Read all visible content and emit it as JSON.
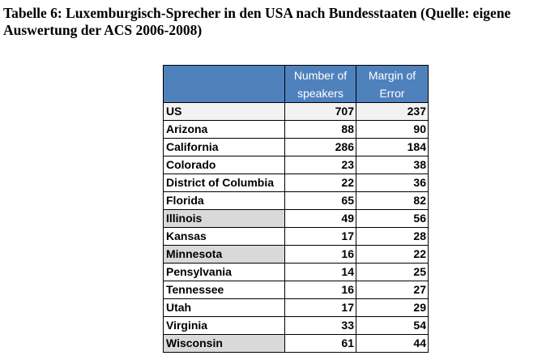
{
  "caption": {
    "line1": "Tabelle 6: Luxemburgisch-Sprecher in den USA nach Bundesstaaten (Quelle: eigene",
    "line2": "Auswertung der ACS 2006-2008)"
  },
  "table": {
    "headers": {
      "col1": "",
      "col2": "Number of speakers",
      "col3": "Margin of Error"
    },
    "rows": [
      {
        "state": "US",
        "speakers": "707",
        "margin": "237",
        "shaded": false
      },
      {
        "state": "Arizona",
        "speakers": "88",
        "margin": "90",
        "shaded": false
      },
      {
        "state": "California",
        "speakers": "286",
        "margin": "184",
        "shaded": false
      },
      {
        "state": "Colorado",
        "speakers": "23",
        "margin": "38",
        "shaded": false
      },
      {
        "state": "District of Columbia",
        "speakers": "22",
        "margin": "36",
        "shaded": false
      },
      {
        "state": "Florida",
        "speakers": "65",
        "margin": "82",
        "shaded": false
      },
      {
        "state": "Illinois",
        "speakers": "49",
        "margin": "56",
        "shaded": true
      },
      {
        "state": "Kansas",
        "speakers": "17",
        "margin": "28",
        "shaded": false
      },
      {
        "state": "Minnesota",
        "speakers": "16",
        "margin": "22",
        "shaded": true
      },
      {
        "state": "Pensylvania",
        "speakers": "14",
        "margin": "25",
        "shaded": false
      },
      {
        "state": "Tennessee",
        "speakers": "16",
        "margin": "27",
        "shaded": false
      },
      {
        "state": "Utah",
        "speakers": "17",
        "margin": "29",
        "shaded": false
      },
      {
        "state": "Virginia",
        "speakers": "33",
        "margin": "54",
        "shaded": false
      },
      {
        "state": "Wisconsin",
        "speakers": "61",
        "margin": "44",
        "shaded": true
      }
    ],
    "colors": {
      "header_bg": "#4f81bd",
      "header_text": "#ffffff",
      "shade": "#d9d9d9",
      "us_row": "#f2f2f2"
    }
  }
}
